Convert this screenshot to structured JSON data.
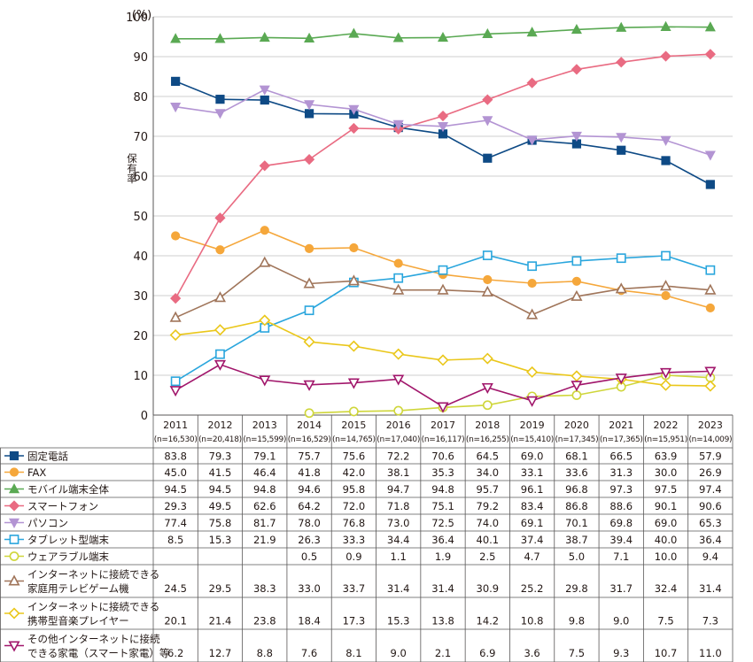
{
  "chart_data": {
    "type": "line",
    "title": "",
    "ylabel": "保有率",
    "y_unit": "(%)",
    "ylim": [
      0,
      100
    ],
    "yticks": [
      0,
      10,
      20,
      30,
      40,
      50,
      60,
      70,
      80,
      90,
      100
    ],
    "grid": true,
    "categories": [
      "2011",
      "2012",
      "2013",
      "2014",
      "2015",
      "2016",
      "2017",
      "2018",
      "2019",
      "2020",
      "2021",
      "2022",
      "2023"
    ],
    "sample_sizes": [
      "(n=16,530)",
      "(n=20,418)",
      "(n=15,599)",
      "(n=16,529)",
      "(n=14,765)",
      "(n=17,040)",
      "(n=16,117)",
      "(n=16,255)",
      "(n=15,410)",
      "(n=17,345)",
      "(n=17,365)",
      "(n=15,951)",
      "(n=14,009)"
    ],
    "series": [
      {
        "name": "固定電話",
        "color": "#0e4a85",
        "marker": "square-filled",
        "values": [
          83.8,
          79.3,
          79.1,
          75.7,
          75.6,
          72.2,
          70.6,
          64.5,
          69.0,
          68.1,
          66.5,
          63.9,
          57.9
        ]
      },
      {
        "name": "FAX",
        "color": "#f5a73b",
        "marker": "circle-filled",
        "values": [
          45.0,
          41.5,
          46.4,
          41.8,
          42.0,
          38.1,
          35.3,
          34.0,
          33.1,
          33.6,
          31.3,
          30.0,
          26.9
        ]
      },
      {
        "name": "モバイル端末全体",
        "color": "#5aa953",
        "marker": "triangle-filled",
        "values": [
          94.5,
          94.5,
          94.8,
          94.6,
          95.8,
          94.7,
          94.8,
          95.7,
          96.1,
          96.8,
          97.3,
          97.5,
          97.4
        ]
      },
      {
        "name": "スマートフォン",
        "color": "#e96b82",
        "marker": "diamond-filled",
        "values": [
          29.3,
          49.5,
          62.6,
          64.2,
          72.0,
          71.8,
          75.1,
          79.2,
          83.4,
          86.8,
          88.6,
          90.1,
          90.6
        ]
      },
      {
        "name": "パソコン",
        "color": "#b394d3",
        "marker": "invtriangle-filled",
        "values": [
          77.4,
          75.8,
          81.7,
          78.0,
          76.8,
          73.0,
          72.5,
          74.0,
          69.1,
          70.1,
          69.8,
          69.0,
          65.3
        ]
      },
      {
        "name": "タブレット型端末",
        "color": "#2aa6dd",
        "marker": "square-open",
        "values": [
          8.5,
          15.3,
          21.9,
          26.3,
          33.3,
          34.4,
          36.4,
          40.1,
          37.4,
          38.7,
          39.4,
          40.0,
          36.4
        ]
      },
      {
        "name": "ウェアラブル端末",
        "color": "#cfd63a",
        "marker": "circle-open",
        "values": [
          null,
          null,
          null,
          0.5,
          0.9,
          1.1,
          1.9,
          2.5,
          4.7,
          5.0,
          7.1,
          10.0,
          9.4
        ]
      },
      {
        "name": "インターネットに接続できる家庭用テレビゲーム機",
        "label_lines": [
          "インターネットに接続できる",
          "家庭用テレビゲーム機"
        ],
        "color": "#a0755a",
        "marker": "triangle-open",
        "values": [
          24.5,
          29.5,
          38.3,
          33.0,
          33.7,
          31.4,
          31.4,
          30.9,
          25.2,
          29.8,
          31.7,
          32.4,
          31.4
        ]
      },
      {
        "name": "インターネットに接続できる携帯型音楽プレイヤー",
        "label_lines": [
          "インターネットに接続できる",
          "携帯型音楽プレイヤー"
        ],
        "color": "#eac71b",
        "marker": "diamond-open",
        "values": [
          20.1,
          21.4,
          23.8,
          18.4,
          17.3,
          15.3,
          13.8,
          14.2,
          10.8,
          9.8,
          9.0,
          7.5,
          7.3
        ]
      },
      {
        "name": "その他インターネットに接続できる家電（スマート家電）等",
        "label_lines": [
          "その他インターネットに接続",
          "できる家電（スマート家電）等"
        ],
        "color": "#a1166b",
        "marker": "invtriangle-open",
        "values": [
          6.2,
          12.7,
          8.8,
          7.6,
          8.1,
          9.0,
          2.1,
          6.9,
          3.6,
          7.5,
          9.3,
          10.7,
          11.0
        ]
      }
    ]
  }
}
